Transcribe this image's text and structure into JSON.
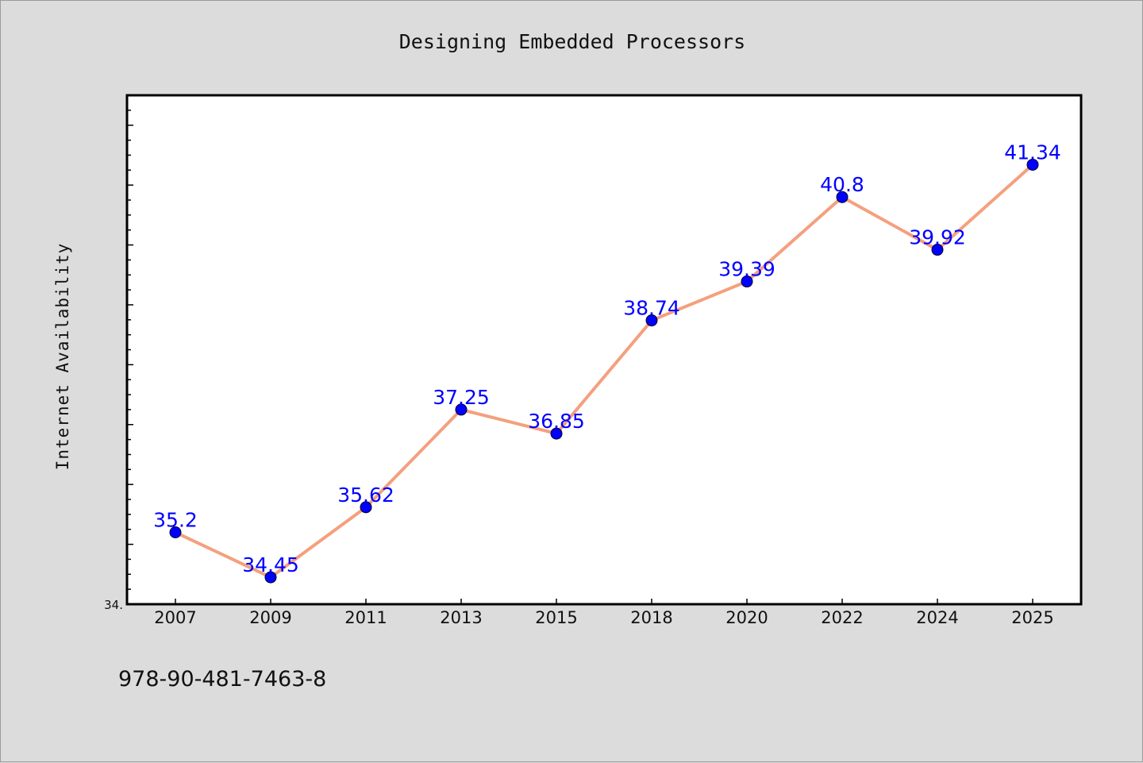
{
  "chart_data": {
    "type": "line",
    "title": "Designing Embedded Processors",
    "xlabel": "",
    "ylabel": "Internet Availability",
    "categories": [
      "2007",
      "2009",
      "2011",
      "2013",
      "2015",
      "2018",
      "2020",
      "2022",
      "2024",
      "2025"
    ],
    "series": [
      {
        "values": [
          35.2,
          34.45,
          35.62,
          37.25,
          36.85,
          38.74,
          39.39,
          40.8,
          39.92,
          41.34
        ]
      }
    ],
    "data_labels": [
      "35.2",
      "34.45",
      "35.62",
      "37.25",
      "36.85",
      "38.74",
      "39.39",
      "40.8",
      "39.92",
      "41.34"
    ],
    "ylim": [
      34.0,
      42.5
    ],
    "y_tick_label": "34.",
    "grid": false,
    "legend": "none",
    "colors": {
      "line": "#f4a07e",
      "marker": "#0000ff",
      "data_label": "#0000ff",
      "plot_background": "#ffffff",
      "figure_background": "#dcdcdc"
    }
  },
  "footer": {
    "isbn": "978-90-481-7463-8"
  }
}
